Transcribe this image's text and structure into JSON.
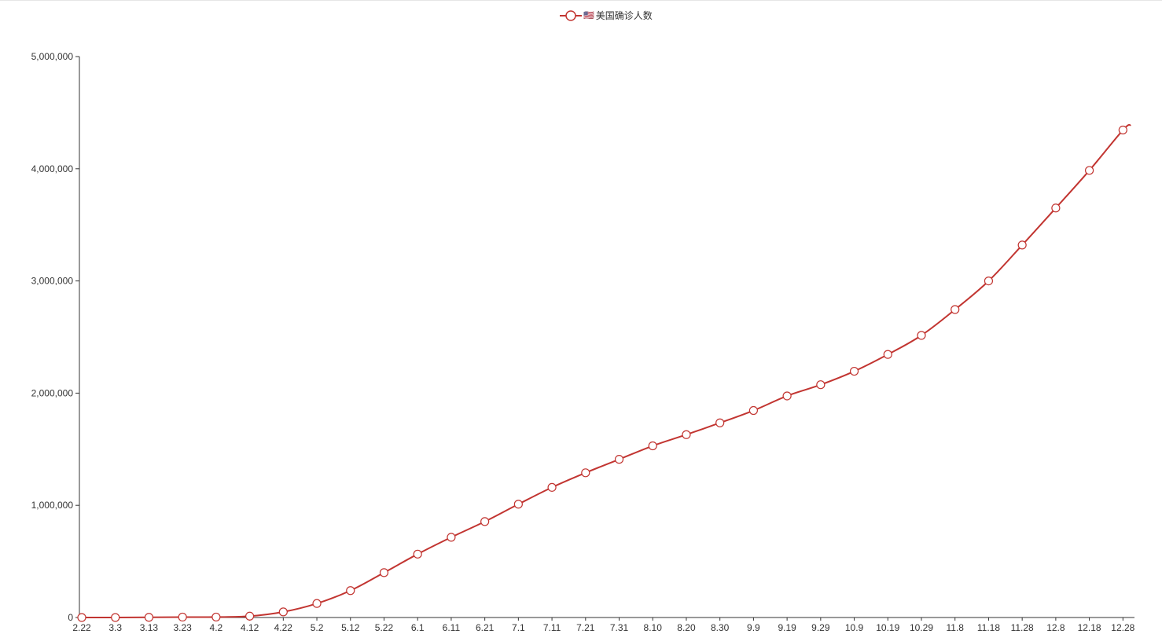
{
  "colors": {
    "series": "#c23531",
    "axis": "#333333",
    "marker_fill": "#ffffff"
  },
  "legend": {
    "flag": "🇺🇸",
    "label": "美国确诊人数",
    "icon": "circle-line-icon"
  },
  "chart_data": {
    "type": "line",
    "title": "",
    "xlabel": "",
    "ylabel": "",
    "legend_position": "top-center",
    "grid": false,
    "smooth": true,
    "x": [
      "2.22",
      "3.3",
      "3.13",
      "3.23",
      "4.2",
      "4.12",
      "4.22",
      "5.2",
      "5.12",
      "5.22",
      "6.1",
      "6.11",
      "6.21",
      "7.1",
      "7.11",
      "7.21",
      "7.31",
      "8.10",
      "8.20",
      "8.30",
      "9.9",
      "9.19",
      "9.29",
      "10.9",
      "10.19",
      "10.29",
      "11.8",
      "11.18",
      "11.28",
      "12.8",
      "12.18",
      "12.28"
    ],
    "ylim": [
      0,
      5000000
    ],
    "yticks": [
      0,
      1000000,
      2000000,
      3000000,
      4000000,
      5000000
    ],
    "ytick_labels": [
      "0",
      "1,000,000",
      "2,000,000",
      "3,000,000",
      "4,000,000",
      "5,000,000"
    ],
    "series": [
      {
        "name": "🇺🇸美国确诊人数",
        "values": [
          0,
          100,
          1600,
          3800,
          4000,
          12000,
          50000,
          125000,
          240000,
          400000,
          565000,
          715000,
          855000,
          1010000,
          1160000,
          1290000,
          1410000,
          1530000,
          1630000,
          1735000,
          1845000,
          1975000,
          2075000,
          2195000,
          2345000,
          2515000,
          2745000,
          3000000,
          3320000,
          3650000,
          3985000,
          4345000
        ]
      }
    ],
    "tail_value": 4390000
  }
}
